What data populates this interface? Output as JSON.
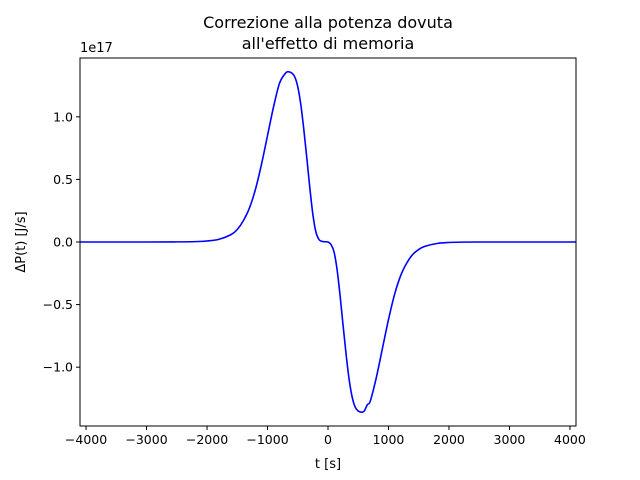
{
  "chart_data": {
    "type": "line",
    "title_lines": [
      "Correzione alla potenza dovuta",
      "all'effetto di memoria"
    ],
    "xlabel": "t [s]",
    "ylabel": "ΔP(t) [J/s]",
    "y_offset_label": "1e17",
    "xlim": [
      -4100,
      4100
    ],
    "ylim": [
      -1.47,
      1.47
    ],
    "x_ticks": [
      -4000,
      -3000,
      -2000,
      -1000,
      0,
      1000,
      2000,
      3000,
      4000
    ],
    "x_tick_labels": [
      "−4000",
      "−3000",
      "−2000",
      "−1000",
      "0",
      "1000",
      "2000",
      "3000",
      "4000"
    ],
    "y_ticks": [
      -1.0,
      -0.5,
      0.0,
      0.5,
      1.0
    ],
    "y_tick_labels": [
      "−1.0",
      "−0.5",
      "0.0",
      "0.5",
      "1.0"
    ],
    "grid": false,
    "series": [
      {
        "color": "#0000ff",
        "x": [
          -4100,
          -3000,
          -2500,
          -2200,
          -2000,
          -1800,
          -1600,
          -1500,
          -1400,
          -1300,
          -1200,
          -1100,
          -1000,
          -900,
          -800,
          -700,
          -650,
          -600,
          -550,
          -500,
          -450,
          -400,
          -350,
          -300,
          -250,
          -200,
          -150,
          -100,
          -50,
          0,
          50,
          100,
          150,
          200,
          250,
          300,
          350,
          400,
          450,
          500,
          550,
          600,
          650,
          700,
          800,
          900,
          1000,
          1100,
          1200,
          1300,
          1400,
          1500,
          1600,
          1800,
          2000,
          2200,
          2500,
          3000,
          4100
        ],
        "y": [
          0.0,
          0.0,
          0.001,
          0.003,
          0.008,
          0.022,
          0.06,
          0.1,
          0.17,
          0.27,
          0.42,
          0.62,
          0.85,
          1.08,
          1.27,
          1.35,
          1.36,
          1.35,
          1.32,
          1.24,
          1.1,
          0.9,
          0.67,
          0.43,
          0.22,
          0.08,
          0.02,
          0.005,
          0.002,
          0.0,
          -0.02,
          -0.08,
          -0.22,
          -0.43,
          -0.67,
          -0.9,
          -1.1,
          -1.24,
          -1.32,
          -1.35,
          -1.36,
          -1.35,
          -1.3,
          -1.27,
          -1.08,
          -0.85,
          -0.62,
          -0.42,
          -0.27,
          -0.17,
          -0.1,
          -0.06,
          -0.035,
          -0.012,
          -0.004,
          -0.001,
          0.0,
          0.0,
          0.0
        ]
      }
    ]
  }
}
